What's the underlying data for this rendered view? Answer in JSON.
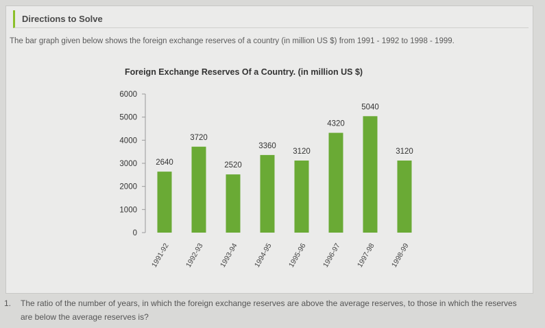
{
  "directions": {
    "title": "Directions to Solve",
    "intro": "The bar graph given below shows the foreign exchange reserves of a country (in million US $) from 1991 - 1992 to 1998 - 1999."
  },
  "chart_data": {
    "type": "bar",
    "title": "Foreign Exchange Reserves Of a Country. (in million US $)",
    "categories": [
      "1991-92",
      "1992-93",
      "1993-94",
      "1994-95",
      "1995-96",
      "1996-97",
      "1997-98",
      "1998-99"
    ],
    "values": [
      2640,
      3720,
      2520,
      3360,
      3120,
      4320,
      5040,
      3120
    ],
    "data_labels": [
      "2640",
      "3720",
      "2520",
      "3360",
      "3120",
      "4320",
      "5040",
      "3120"
    ],
    "yticks": [
      0,
      1000,
      2000,
      3000,
      4000,
      5000,
      6000
    ],
    "ylim": [
      0,
      6000
    ],
    "xlabel": "",
    "ylabel": "",
    "grid": false,
    "legend": "none",
    "bar_color": "#6aaa35"
  },
  "question": {
    "number": "1.",
    "text": "The ratio of the number of years, in which the foreign exchange reserves are above the average reserves, to those in which the reserves are below the average reserves is?"
  }
}
